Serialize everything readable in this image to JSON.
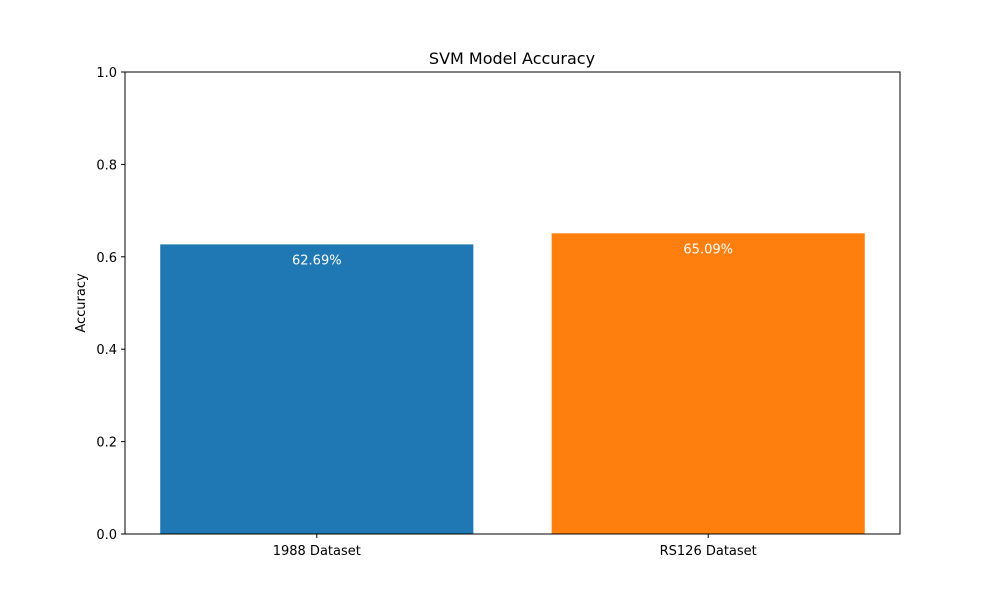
{
  "chart_data": {
    "type": "bar",
    "title": "SVM Model Accuracy",
    "xlabel": "",
    "ylabel": "Accuracy",
    "ylim": [
      0,
      1.0
    ],
    "yticks": [
      "0.0",
      "0.2",
      "0.4",
      "0.6",
      "0.8",
      "1.0"
    ],
    "grid": false,
    "legend": "none",
    "categories": [
      "1988 Dataset",
      "RS126 Dataset"
    ],
    "values": [
      0.6269,
      0.6509
    ],
    "data_labels": [
      "62.69%",
      "65.09%"
    ],
    "colors": [
      "#1f77b4",
      "#ff7f0e"
    ]
  }
}
